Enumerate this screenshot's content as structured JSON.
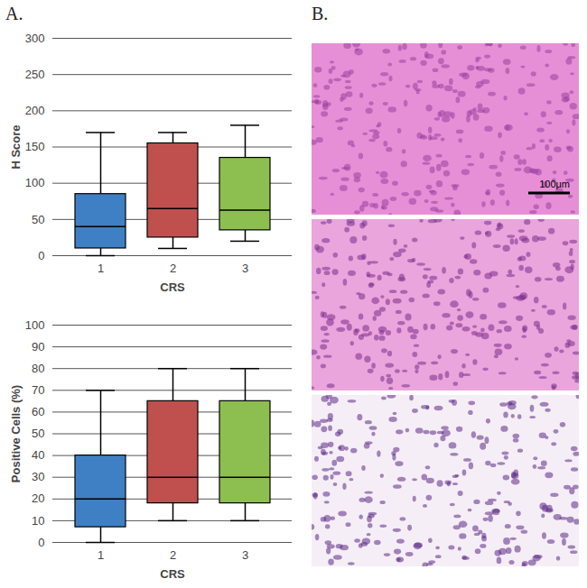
{
  "chart_data": [
    {
      "type": "box",
      "x_label": "CRS",
      "y_label": "H Score",
      "categories": [
        "1",
        "2",
        "3"
      ],
      "stats": {
        "min": [
          0,
          10,
          20
        ],
        "q1": [
          10,
          25,
          35
        ],
        "median": [
          40,
          65,
          63
        ],
        "q3": [
          85,
          155,
          135
        ],
        "max": [
          170,
          170,
          180
        ]
      },
      "colors": [
        "#3f7fc4",
        "#c0504d",
        "#8cbf50"
      ],
      "ylim": [
        0,
        300
      ],
      "yticks": [
        0,
        50,
        100,
        150,
        200,
        250,
        300
      ],
      "grid": true
    },
    {
      "type": "box",
      "x_label": "CRS",
      "y_label": "Positive Cells (%)",
      "categories": [
        "1",
        "2",
        "3"
      ],
      "stats": {
        "min": [
          0,
          10,
          10
        ],
        "q1": [
          7,
          18,
          18
        ],
        "median": [
          20,
          30,
          30
        ],
        "q3": [
          40,
          65,
          65
        ],
        "max": [
          70,
          80,
          80
        ]
      },
      "colors": [
        "#3f7fc4",
        "#c0504d",
        "#8cbf50"
      ],
      "ylim": [
        0,
        100
      ],
      "yticks": [
        0,
        10,
        20,
        30,
        40,
        50,
        60,
        70,
        80,
        90,
        100
      ],
      "grid": true
    }
  ],
  "panel_labels": [
    "A.",
    "B."
  ],
  "images": {
    "count": 3,
    "scale_bar": "100μm"
  }
}
